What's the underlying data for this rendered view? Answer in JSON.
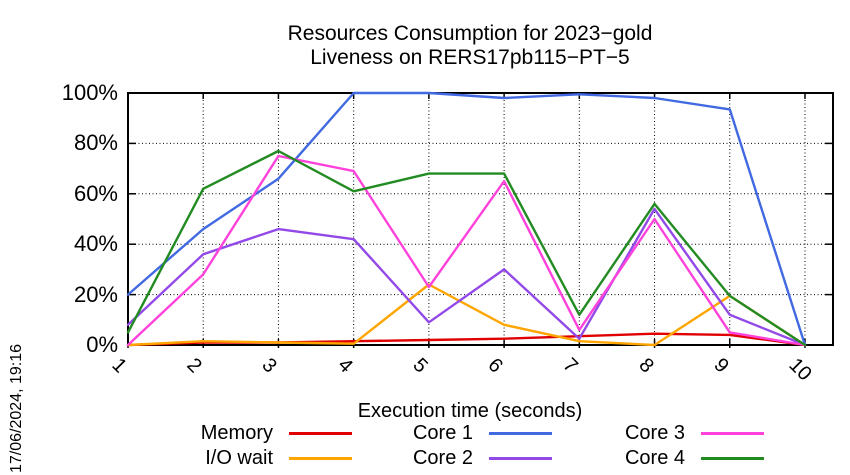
{
  "meta": {
    "timestamp_label": "17/06/2024, 19:16"
  },
  "chart_data": {
    "type": "line",
    "title": "Resources Consumption for 2023−gold",
    "subtitle": "Liveness on RERS17pb115−PT−5",
    "xlabel": "Execution time (seconds)",
    "ylabel": "",
    "x": [
      1,
      2,
      3,
      4,
      5,
      6,
      7,
      8,
      9,
      10
    ],
    "x_tick_labels": [
      "1",
      "2",
      "3",
      "4",
      "5",
      "6",
      "7",
      "8",
      "9",
      "10"
    ],
    "y_ticks": [
      0,
      20,
      40,
      60,
      80,
      100
    ],
    "y_tick_labels": [
      "0%",
      "20%",
      "40%",
      "60%",
      "80%",
      "100%"
    ],
    "ylim": [
      0,
      100
    ],
    "xlim": [
      1,
      10.37
    ],
    "grid": true,
    "legend_position": "below",
    "series": [
      {
        "name": "Memory",
        "color": "#e00000",
        "values": [
          0,
          1,
          1,
          1.5,
          2,
          2.5,
          3.5,
          4.5,
          4,
          0
        ]
      },
      {
        "name": "I/O wait",
        "color": "#ffa500",
        "values": [
          0,
          1.5,
          1,
          0.5,
          24,
          8,
          1.5,
          0,
          19.5,
          0
        ]
      },
      {
        "name": "Core 1",
        "color": "#4169e1",
        "values": [
          20,
          46,
          66,
          100,
          100,
          98,
          99.5,
          98,
          93.5,
          0
        ]
      },
      {
        "name": "Core 2",
        "color": "#9349e8",
        "values": [
          8,
          36,
          46,
          42,
          9,
          30,
          2.5,
          54,
          12,
          0
        ]
      },
      {
        "name": "Core 3",
        "color": "#ff42dc",
        "values": [
          0,
          28,
          75,
          69,
          23,
          65,
          6,
          50,
          5,
          0
        ]
      },
      {
        "name": "Core 4",
        "color": "#228b22",
        "values": [
          5,
          62,
          77,
          61,
          68,
          68,
          12,
          56,
          19.5,
          0
        ]
      }
    ]
  },
  "legend": {
    "columns": [
      [
        0,
        1
      ],
      [
        2,
        3
      ],
      [
        4,
        5
      ]
    ],
    "column_lefts": [
      143,
      343,
      555
    ]
  }
}
